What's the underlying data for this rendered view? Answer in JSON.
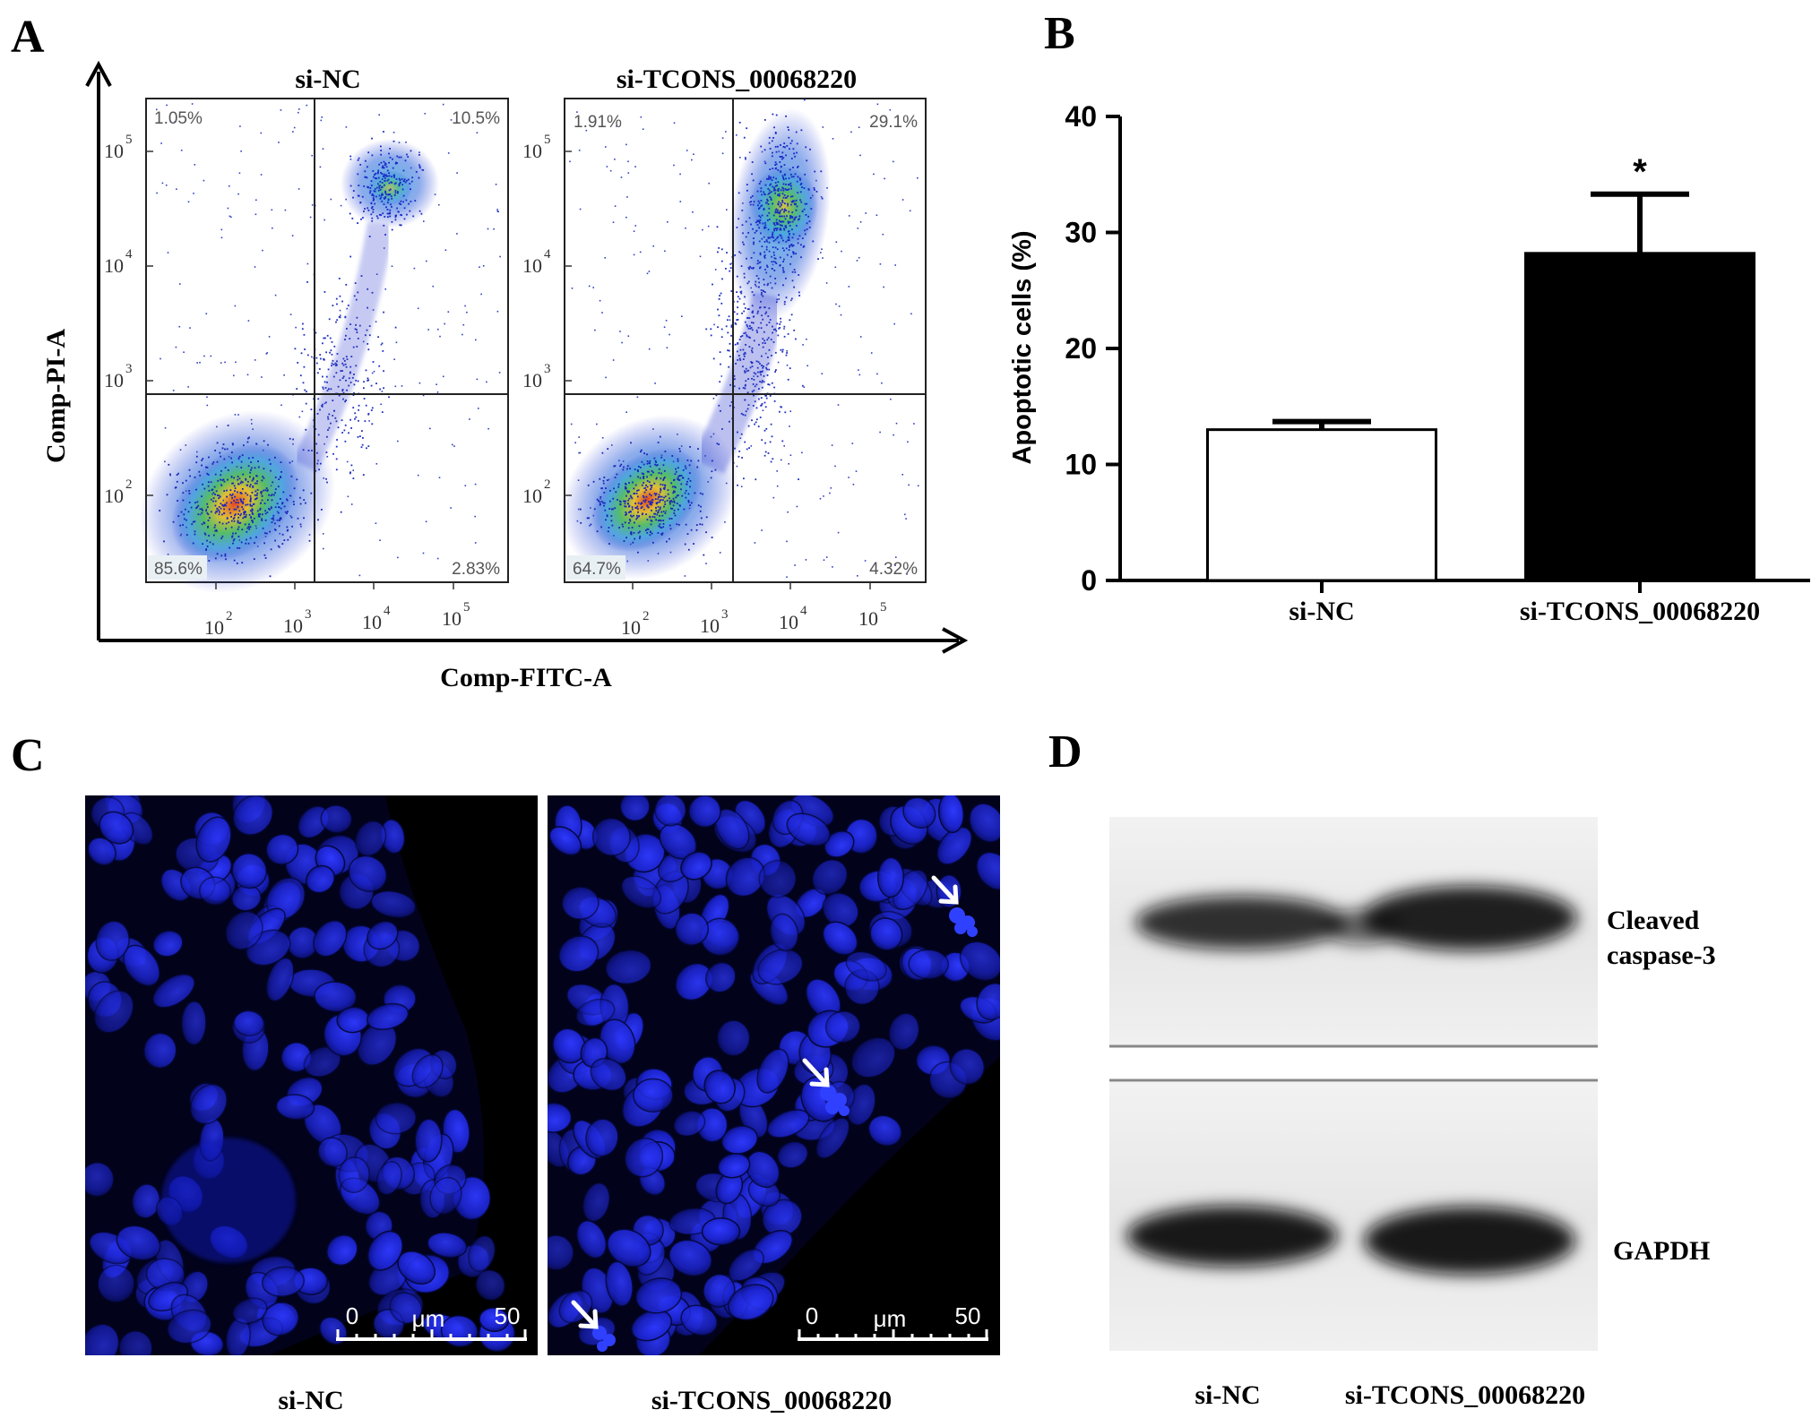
{
  "panels": {
    "A": {
      "letter": "A",
      "x_axis_label": "Comp-FITC-A",
      "y_axis_label": "Comp-PI-A",
      "tick_base": "10",
      "tick_exps": [
        "2",
        "3",
        "4",
        "5"
      ],
      "plots": [
        {
          "title": "si-NC",
          "q_upper_left": "1.05%",
          "q_upper_right": "10.5%",
          "q_lower_left": "85.6%",
          "q_lower_right": "2.83%"
        },
        {
          "title": "si-TCONS_00068220",
          "q_upper_left": "1.91%",
          "q_upper_right": "29.1%",
          "q_lower_left": "64.7%",
          "q_lower_right": "4.32%"
        }
      ]
    },
    "B": {
      "letter": "B",
      "significance_mark": "*",
      "chart_data": {
        "type": "bar",
        "categories": [
          "si-NC",
          "si-TCONS_00068220"
        ],
        "values": [
          13.0,
          28.2
        ],
        "errors": [
          0.7,
          5.1
        ],
        "ylabel": "Apoptotic cells (%)",
        "xlabel": "",
        "ylim": [
          0,
          40
        ],
        "yticks": [
          "0",
          "10",
          "20",
          "30",
          "40"
        ],
        "bar_colors": [
          "#ffffff",
          "#000000"
        ]
      }
    },
    "C": {
      "letter": "C",
      "images": [
        {
          "caption": "si-NC",
          "scale_start": "0",
          "scale_unit": "μm",
          "scale_end": "50"
        },
        {
          "caption": "si-TCONS_00068220",
          "scale_start": "0",
          "scale_unit": "μm",
          "scale_end": "50"
        }
      ]
    },
    "D": {
      "letter": "D",
      "bands": [
        "Cleaved",
        "caspase-3",
        "GAPDH"
      ],
      "lanes": [
        "si-NC",
        "si-TCONS_00068220"
      ]
    }
  },
  "colors": {
    "stain": "#1a22ff",
    "background_image": "#000000"
  }
}
